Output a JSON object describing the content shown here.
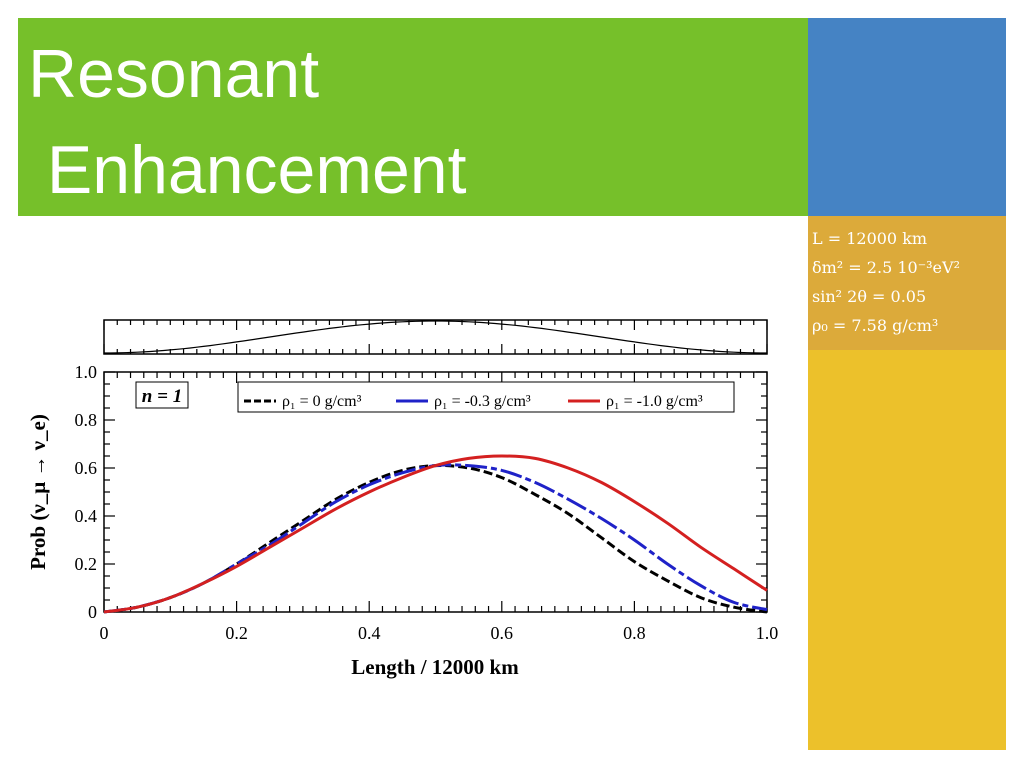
{
  "slide": {
    "title": "Resonant\n Enhancement",
    "colors": {
      "title_band": "#76c02a",
      "title_text": "#ffffff",
      "blue_block": "#4583c4",
      "params_block": "#dcaa3a",
      "yellow_block": "#ecc12b"
    },
    "parameters": [
      "L = 12000 km",
      "δm² = 2.5 10⁻³eV²",
      "sin² 2θ = 0.05",
      "ρ₀ = 7.58 g/cm³"
    ]
  },
  "chart_data": [
    {
      "type": "line",
      "panel": "density-profile",
      "title": "",
      "xlabel": "",
      "ylabel": "",
      "xlim": [
        0,
        1.0
      ],
      "shape": "sin(pi*x)^2",
      "color": "#000000"
    },
    {
      "type": "line",
      "panel": "probability",
      "title": "",
      "xlabel": "Length / 12000 km",
      "ylabel": "Prob (ν_μ → ν_e)",
      "xlim": [
        0,
        1.0
      ],
      "ylim": [
        0,
        1.0
      ],
      "x_ticks": [
        "0",
        "0.2",
        "0.4",
        "0.6",
        "0.8",
        "1.0"
      ],
      "y_ticks": [
        "0",
        "0.2",
        "0.4",
        "0.6",
        "0.8",
        "1.0"
      ],
      "annotation": "n = 1",
      "legend_position": "top-right",
      "legend": [
        {
          "label": "ρ₁ = 0 g/cm³",
          "color": "#000000",
          "dash": "dashed"
        },
        {
          "label": "ρ₁ = -0.3 g/cm³",
          "color": "#1f22c8",
          "dash": "long-dash"
        },
        {
          "label": "ρ₁ = -1.0 g/cm³",
          "color": "#d42020",
          "dash": "solid"
        }
      ],
      "series": [
        {
          "color": "#000000",
          "x": [
            0,
            0.05,
            0.1,
            0.15,
            0.2,
            0.25,
            0.3,
            0.35,
            0.4,
            0.45,
            0.5,
            0.55,
            0.6,
            0.65,
            0.7,
            0.75,
            0.8,
            0.85,
            0.9,
            0.95,
            1.0
          ],
          "y": [
            0,
            0.02,
            0.06,
            0.12,
            0.2,
            0.29,
            0.38,
            0.47,
            0.54,
            0.59,
            0.61,
            0.6,
            0.56,
            0.49,
            0.41,
            0.31,
            0.21,
            0.13,
            0.06,
            0.02,
            0
          ]
        },
        {
          "color": "#1f22c8",
          "x": [
            0,
            0.05,
            0.1,
            0.15,
            0.2,
            0.25,
            0.3,
            0.35,
            0.4,
            0.45,
            0.5,
            0.55,
            0.6,
            0.65,
            0.7,
            0.75,
            0.8,
            0.85,
            0.9,
            0.95,
            1.0
          ],
          "y": [
            0,
            0.02,
            0.06,
            0.12,
            0.2,
            0.28,
            0.37,
            0.46,
            0.53,
            0.58,
            0.61,
            0.61,
            0.59,
            0.54,
            0.47,
            0.39,
            0.3,
            0.2,
            0.11,
            0.04,
            0.01
          ]
        },
        {
          "color": "#d42020",
          "x": [
            0,
            0.05,
            0.1,
            0.15,
            0.2,
            0.25,
            0.3,
            0.35,
            0.4,
            0.45,
            0.5,
            0.55,
            0.6,
            0.65,
            0.7,
            0.75,
            0.8,
            0.85,
            0.9,
            0.95,
            1.0
          ],
          "y": [
            0,
            0.02,
            0.06,
            0.12,
            0.19,
            0.27,
            0.35,
            0.43,
            0.5,
            0.56,
            0.61,
            0.64,
            0.65,
            0.64,
            0.6,
            0.54,
            0.46,
            0.37,
            0.27,
            0.18,
            0.09
          ]
        }
      ]
    }
  ]
}
